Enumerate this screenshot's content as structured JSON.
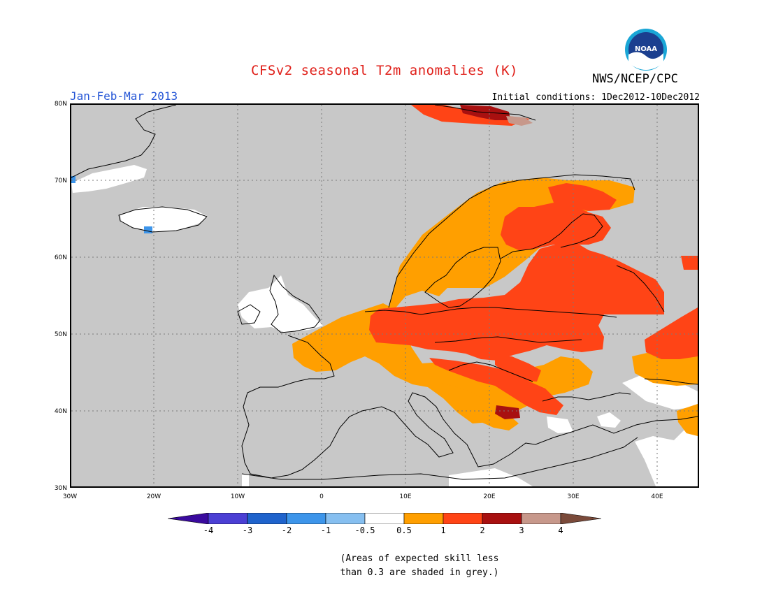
{
  "title": "CFSv2 seasonal T2m anomalies (K)",
  "agency": "NWS/NCEP/CPC",
  "season": "Jan-Feb-Mar 2013",
  "initial_conditions": "Initial conditions: 1Dec2012-10Dec2012",
  "logo_icon": "noaa-logo-icon",
  "lat_labels": [
    "80N",
    "70N",
    "60N",
    "50N",
    "40N",
    "30N"
  ],
  "lon_labels": [
    "30W",
    "20W",
    "10W",
    "0",
    "10E",
    "20E",
    "30E",
    "40E"
  ],
  "colorbar": {
    "labels": [
      "-4",
      "-3",
      "-2",
      "-1",
      "-0.5",
      "0.5",
      "1",
      "2",
      "3",
      "4"
    ],
    "colors": [
      "#3a0a9e",
      "#4b3fd4",
      "#1f63cc",
      "#3d95ea",
      "#86bff0",
      "#ffffff",
      "#ff9f00",
      "#ff4416",
      "#a81010",
      "#c7988b",
      "#7a4a3a"
    ]
  },
  "note_line1": "(Areas of expected skill less",
  "note_line2": "than 0.3 are shaded in grey.)",
  "chart_data": {
    "type": "heatmap",
    "region": "Europe",
    "lat_range": [
      30,
      80
    ],
    "lon_range": [
      -30,
      45
    ],
    "units": "K",
    "legend_bins": [
      "<-4",
      "-4 to -3",
      "-3 to -2",
      "-2 to -1",
      "-1 to -0.5",
      "-0.5 to 0.5",
      "0.5 to 1",
      "1 to 2",
      "2 to 3",
      "3 to 4",
      ">4"
    ],
    "grey_means": "expected skill less than 0.3"
  }
}
